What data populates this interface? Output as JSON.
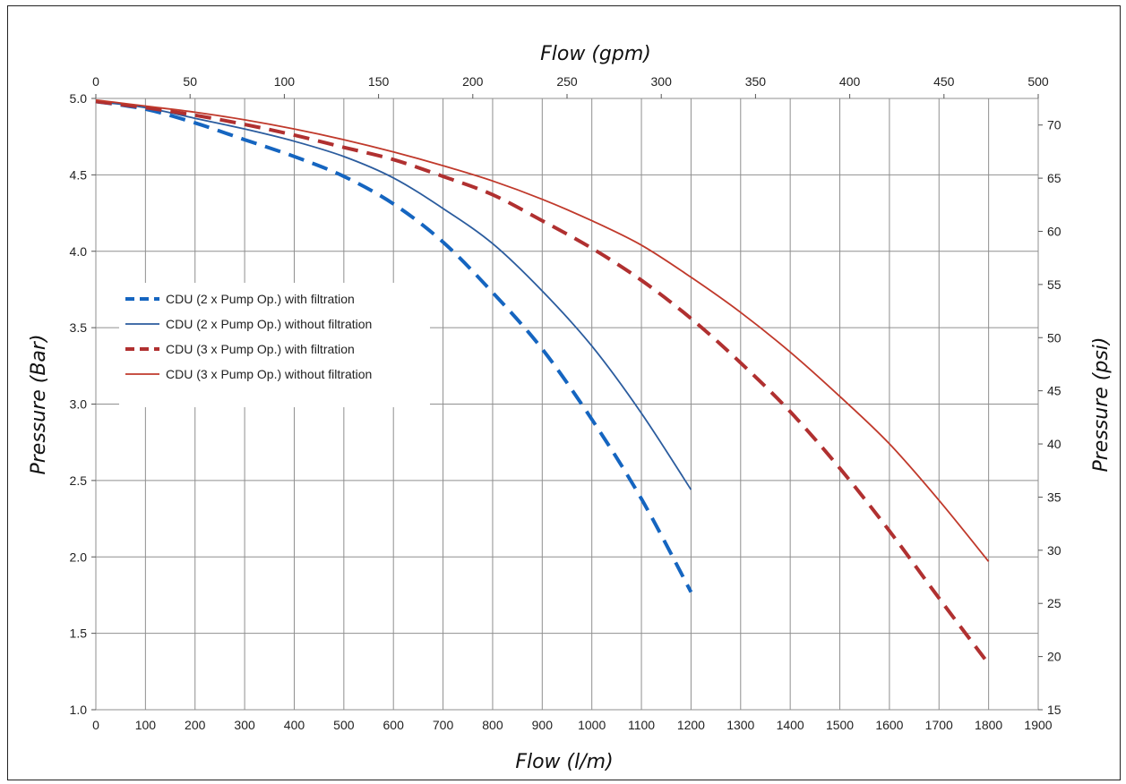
{
  "chart_data": {
    "type": "line",
    "title": "",
    "xlabel": "Flow (l/m)",
    "x2label": "Flow (gpm)",
    "ylabel": "Pressure (Bar)",
    "y2label": "Pressure (psi)",
    "xlim": [
      0,
      1900
    ],
    "x2lim": [
      0,
      500
    ],
    "ylim": [
      1.0,
      5.0
    ],
    "y2lim": [
      15,
      72.5
    ],
    "x_ticks": [
      0,
      100,
      200,
      300,
      400,
      500,
      600,
      700,
      800,
      900,
      1000,
      1100,
      1200,
      1300,
      1400,
      1500,
      1600,
      1700,
      1800,
      1900
    ],
    "x2_ticks": [
      0,
      50,
      100,
      150,
      200,
      250,
      300,
      350,
      400,
      450,
      500
    ],
    "y_ticks": [
      1.0,
      1.5,
      2.0,
      2.5,
      3.0,
      3.5,
      4.0,
      4.5,
      5.0
    ],
    "y_tick_labels": [
      "1.0",
      "1.5",
      "2.0",
      "2.5",
      "3.0",
      "3.5",
      "4.0",
      "4.5",
      "5.0"
    ],
    "y2_ticks": [
      15,
      20,
      25,
      30,
      35,
      40,
      45,
      50,
      55,
      60,
      65,
      70
    ],
    "grid": true,
    "legend": "upper-left",
    "series": [
      {
        "name": "CDU (2 x Pump Op.) with filtration",
        "color": "#1565C0",
        "style": "dashed",
        "width": 4,
        "x": [
          0,
          100,
          200,
          300,
          400,
          500,
          600,
          700,
          800,
          900,
          1000,
          1100,
          1200
        ],
        "y": [
          4.98,
          4.93,
          4.84,
          4.73,
          4.62,
          4.49,
          4.31,
          4.06,
          3.73,
          3.36,
          2.9,
          2.38,
          1.77
        ]
      },
      {
        "name": "CDU (2 x Pump Op.) without filtration",
        "color": "#2B5C9E",
        "style": "solid",
        "width": 1.8,
        "x": [
          0,
          100,
          200,
          300,
          400,
          500,
          600,
          700,
          800,
          900,
          1000,
          1100,
          1200
        ],
        "y": [
          4.98,
          4.94,
          4.87,
          4.8,
          4.72,
          4.62,
          4.48,
          4.28,
          4.05,
          3.74,
          3.38,
          2.94,
          2.44
        ]
      },
      {
        "name": "CDU (3 x Pump Op.) with filtration",
        "color": "#B03030",
        "style": "dashed",
        "width": 4,
        "x": [
          0,
          100,
          200,
          300,
          400,
          500,
          600,
          700,
          800,
          900,
          1000,
          1100,
          1200,
          1300,
          1400,
          1500,
          1600,
          1700,
          1800
        ],
        "y": [
          4.98,
          4.94,
          4.89,
          4.83,
          4.76,
          4.68,
          4.6,
          4.49,
          4.37,
          4.2,
          4.02,
          3.81,
          3.56,
          3.27,
          2.95,
          2.58,
          2.17,
          1.73,
          1.3
        ]
      },
      {
        "name": "CDU (3 x Pump Op.) without filtration",
        "color": "#C0392B",
        "style": "solid",
        "width": 1.8,
        "x": [
          0,
          100,
          200,
          300,
          400,
          500,
          600,
          700,
          800,
          900,
          1000,
          1100,
          1200,
          1300,
          1400,
          1500,
          1600,
          1700,
          1800
        ],
        "y": [
          4.99,
          4.95,
          4.91,
          4.86,
          4.8,
          4.73,
          4.65,
          4.56,
          4.46,
          4.34,
          4.2,
          4.04,
          3.83,
          3.6,
          3.34,
          3.05,
          2.74,
          2.37,
          1.97
        ]
      }
    ]
  }
}
